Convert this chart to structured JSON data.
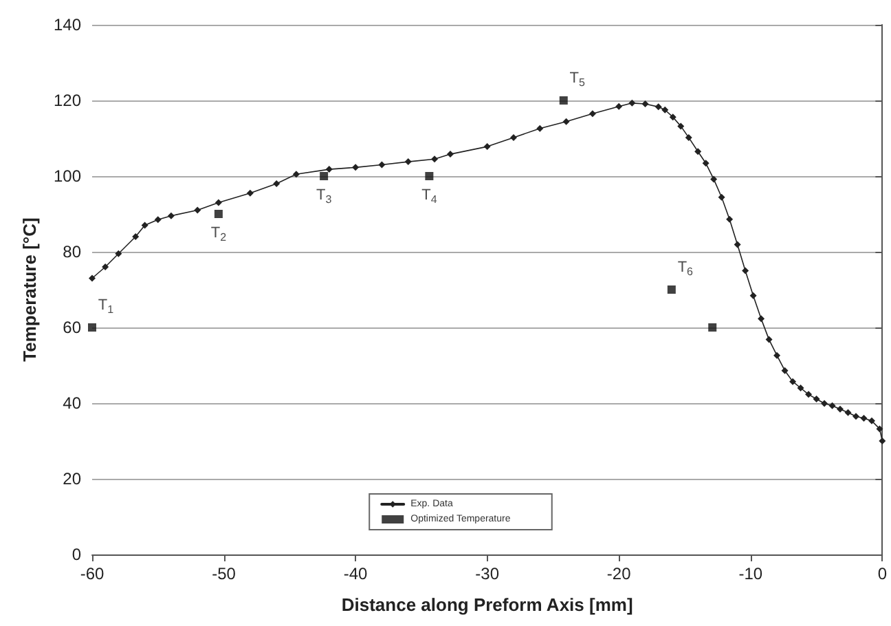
{
  "chart_data": {
    "type": "line",
    "xlabel": "Distance along Preform Axis [mm]",
    "ylabel": "Temperature [°C]",
    "xlim": [
      -60,
      0
    ],
    "xticks": [
      -60,
      -50,
      -40,
      -30,
      -20,
      -10,
      0
    ],
    "ylim": [
      0,
      140
    ],
    "yticks": [
      0,
      20,
      40,
      60,
      80,
      100,
      120,
      140
    ],
    "grid": "y",
    "legend": "bottom",
    "series": [
      {
        "name": "Exp. Data",
        "color": "#222222",
        "marker": "diamond",
        "line_style": "solid",
        "x": [
          -60,
          -59,
          -58,
          -56.7,
          -56,
          -55,
          -54,
          -52,
          -50.4,
          -48,
          -46,
          -44.5,
          -42,
          -40,
          -38,
          -36,
          -34,
          -32.8,
          -30,
          -28,
          -26,
          -24,
          -22,
          -20,
          -19,
          -18,
          -17,
          -16.5,
          -15.9,
          -15.3,
          -14.7,
          -14,
          -13.4,
          -12.8,
          -12.2,
          -11.6,
          -11,
          -10.4,
          -9.8,
          -9.2,
          -8.6,
          -8,
          -7.4,
          -6.8,
          -6.2,
          -5.6,
          -5,
          -4.4,
          -3.8,
          -3.2,
          -2.6,
          -2,
          -1.4,
          -0.8,
          -0.2,
          0
        ],
        "values": [
          73,
          76,
          79.5,
          84,
          87,
          88.5,
          89.5,
          91,
          93,
          95.5,
          98,
          100.5,
          101.8,
          102.3,
          103,
          103.8,
          104.5,
          105.8,
          107.8,
          110.2,
          112.6,
          114.4,
          116.5,
          118.4,
          119.3,
          119.1,
          118.3,
          117.5,
          115.6,
          113.2,
          110.2,
          106.5,
          103.4,
          99.2,
          94.4,
          88.6,
          81.9,
          75,
          68.4,
          62.3,
          56.8,
          52.6,
          48.6,
          45.7,
          44,
          42.3,
          41.1,
          39.9,
          39.3,
          38.4,
          37.5,
          36.5,
          36,
          35.3,
          33.2,
          30
        ]
      },
      {
        "name": "Optimized Temperature",
        "type": "scatter",
        "color": "#111111",
        "marker": "square",
        "x": [
          -60,
          -50.4,
          -42.4,
          -34.4,
          -24.2,
          -16,
          -12.9
        ],
        "values": [
          60,
          90,
          100,
          100,
          120,
          70,
          60
        ]
      }
    ],
    "annotations": [
      {
        "text": "T$_{1}$",
        "x": -60,
        "y": 60
      },
      {
        "text": "T$_{2}$",
        "x": -50.4,
        "y": 90
      },
      {
        "text": "T$_{3}$",
        "x": -42.4,
        "y": 100
      },
      {
        "text": "T$_{4}$",
        "x": -34.4,
        "y": 100
      },
      {
        "text": "T$_{5}$",
        "x": -24.2,
        "y": 120
      },
      {
        "text": "T$_{6}$",
        "x": -16,
        "y": 70
      }
    ]
  }
}
